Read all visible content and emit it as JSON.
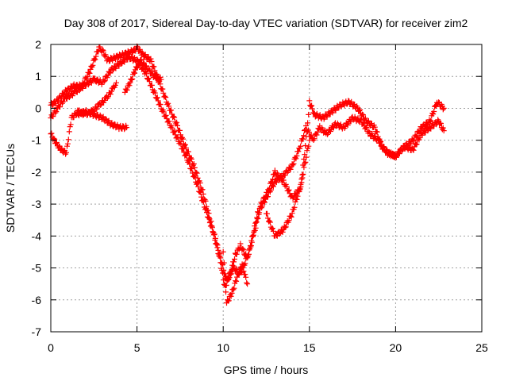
{
  "chart_data": {
    "type": "scatter",
    "title": "Day 308 of 2017, Sidereal Day-to-day VTEC variation (SDTVAR) for receiver zim2",
    "xlabel": "GPS time / hours",
    "ylabel": "SDTVAR / TECUs",
    "xlim": [
      0,
      25
    ],
    "ylim": [
      -7,
      2
    ],
    "xticks": [
      "0",
      "5",
      "10",
      "15",
      "20",
      "25"
    ],
    "yticks": [
      "-7",
      "-6",
      "-5",
      "-4",
      "-3",
      "-2",
      "-1",
      "0",
      "1",
      "2"
    ],
    "grid": true,
    "marker": "plus",
    "color": "#ff0000",
    "series": [
      {
        "x": [
          0.0,
          0.3,
          0.8,
          1.3,
          1.8,
          2.3,
          2.8,
          3.0,
          3.3,
          3.8,
          4.3,
          4.8,
          5.0,
          5.3,
          5.8,
          6.3,
          6.8,
          7.3,
          7.8,
          8.3,
          8.8,
          9.3,
          9.8,
          10.1,
          10.4,
          10.7,
          11.0,
          11.4,
          11.8,
          12.2,
          12.6,
          13.0,
          13.5,
          14.0,
          14.5,
          14.9,
          15.0,
          15.3,
          15.8,
          16.3,
          16.8,
          17.3,
          17.8,
          18.3,
          18.8,
          19.2,
          19.6,
          20.0,
          20.5,
          21.0,
          21.5,
          22.0,
          22.4,
          22.8
        ],
        "y": [
          0.1,
          0.2,
          0.5,
          0.7,
          0.7,
          1.2,
          1.9,
          1.8,
          1.5,
          1.6,
          1.7,
          1.8,
          1.9,
          1.7,
          1.5,
          0.8,
          0.1,
          -0.5,
          -1.2,
          -1.8,
          -2.6,
          -3.6,
          -4.7,
          -5.6,
          -5.2,
          -4.6,
          -4.3,
          -4.7,
          -3.9,
          -3.0,
          -2.6,
          -2.0,
          -2.3,
          -2.8,
          -2.5,
          -0.5,
          0.2,
          -0.2,
          -0.3,
          -0.1,
          0.1,
          0.2,
          0.0,
          -0.4,
          -0.6,
          -1.2,
          -1.4,
          -1.5,
          -1.2,
          -1.0,
          -0.6,
          -0.4,
          0.2,
          0.0
        ]
      },
      {
        "x": [
          0.0,
          0.4,
          0.8,
          1.4,
          1.9,
          2.5,
          3.0,
          3.5,
          4.0,
          4.5,
          5.0,
          5.5,
          6.0,
          6.5,
          7.0,
          7.5,
          8.0,
          8.5,
          9.0,
          9.5,
          9.8,
          10.2,
          10.6,
          11.0,
          11.5,
          12.0,
          12.5,
          13.0,
          13.5,
          14.0,
          14.4,
          14.8,
          15.2,
          15.6,
          16.0,
          16.5,
          17.0,
          17.5,
          18.0,
          18.5,
          19.0,
          19.5,
          20.0,
          20.5,
          21.0,
          21.5,
          22.0,
          22.5,
          22.8
        ],
        "y": [
          -0.3,
          0.0,
          0.3,
          0.5,
          0.7,
          0.9,
          0.8,
          1.2,
          1.4,
          1.6,
          1.5,
          1.1,
          0.5,
          -0.1,
          -0.6,
          -1.1,
          -1.7,
          -2.4,
          -3.2,
          -4.0,
          -4.6,
          -5.4,
          -5.0,
          -5.2,
          -4.5,
          -3.3,
          -2.8,
          -2.3,
          -2.1,
          -1.8,
          -1.3,
          -0.6,
          -1.0,
          -0.6,
          -0.8,
          -0.5,
          -0.6,
          -0.3,
          -0.4,
          -0.8,
          -1.0,
          -1.4,
          -1.5,
          -1.2,
          -1.3,
          -0.8,
          -0.6,
          -0.4,
          -0.7
        ]
      },
      {
        "x": [
          0.0,
          0.3,
          0.6,
          0.9,
          1.2,
          1.6,
          2.0,
          2.4,
          2.8,
          3.2,
          3.6,
          3.8
        ],
        "y": [
          -0.8,
          -1.1,
          -1.3,
          -1.4,
          -0.3,
          -0.1,
          -0.2,
          -0.1,
          0.1,
          0.3,
          0.6,
          0.8
        ]
      },
      {
        "x": [
          1.5,
          2.0,
          2.5,
          3.0,
          3.5,
          4.0,
          4.4
        ],
        "y": [
          -0.2,
          -0.1,
          -0.2,
          -0.3,
          -0.5,
          -0.6,
          -0.6
        ]
      },
      {
        "x": [
          4.3,
          4.6,
          4.9,
          5.2,
          5.5,
          6.0,
          6.4
        ],
        "y": [
          0.5,
          0.8,
          1.2,
          1.5,
          1.3,
          1.0,
          0.9
        ]
      },
      {
        "x": [
          12.5,
          13.0,
          13.5,
          14.0,
          14.5,
          15.0
        ],
        "y": [
          -3.3,
          -4.0,
          -3.8,
          -3.3,
          -2.4,
          -1.0
        ]
      },
      {
        "x": [
          10.0,
          10.2,
          10.5,
          10.8,
          11.1,
          11.4
        ],
        "y": [
          -4.5,
          -6.1,
          -5.8,
          -5.3,
          -4.9,
          -5.5
        ]
      }
    ]
  }
}
